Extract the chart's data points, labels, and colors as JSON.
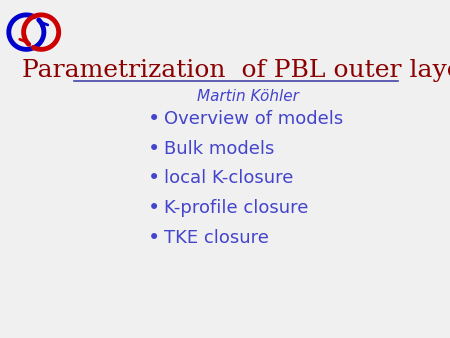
{
  "title": "Parametrization  of PBL outer layer",
  "author": "Martin Köhler",
  "title_color": "#8B0000",
  "author_color": "#4444CC",
  "bullet_color": "#4444CC",
  "bullet_items": [
    "Overview of models",
    "Bulk models",
    "local K-closure",
    "K-profile closure",
    "TKE closure"
  ],
  "background_color": "#F0F0F0",
  "line_color": "#4444AA",
  "title_fontsize": 18,
  "author_fontsize": 11,
  "bullet_fontsize": 13,
  "logo_blue": "#0000CC",
  "logo_red": "#CC0000"
}
